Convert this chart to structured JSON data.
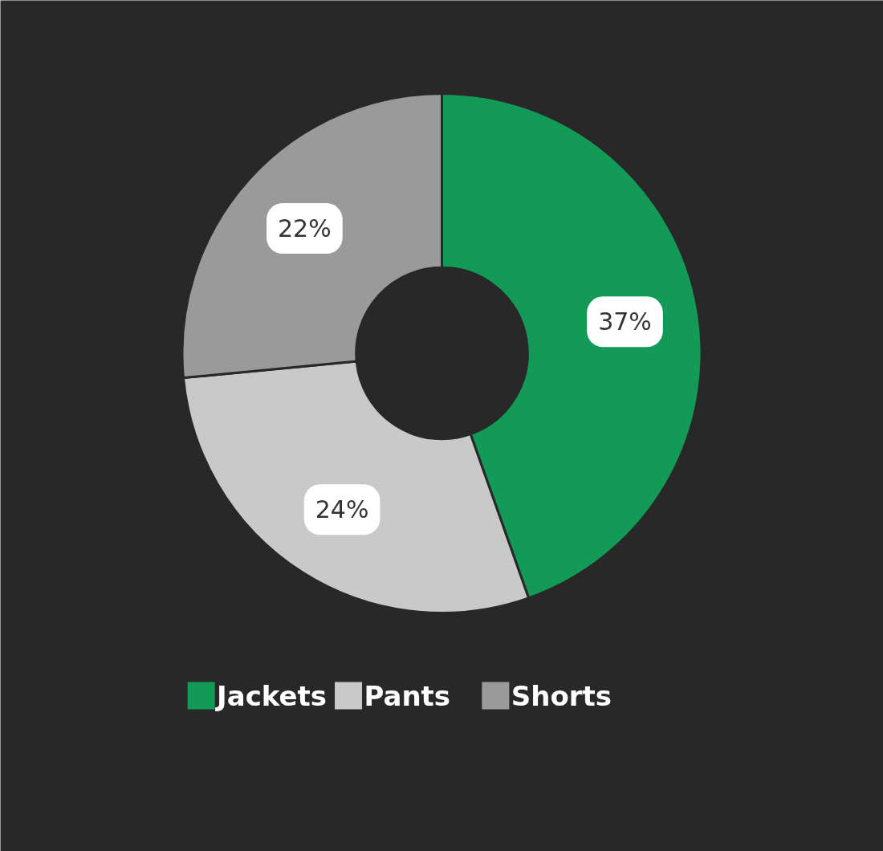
{
  "chart_data": {
    "type": "donut",
    "categories": [
      "Jackets",
      "Pants",
      "Shorts"
    ],
    "values": [
      37,
      24,
      22
    ],
    "colors": [
      "#149a57",
      "#c9c9c9",
      "#9a9a9a"
    ],
    "value_labels": [
      "37%",
      "24%",
      "22%"
    ],
    "legend": "bottom"
  }
}
